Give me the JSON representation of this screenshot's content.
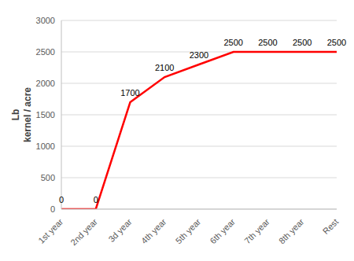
{
  "chart_data": {
    "type": "line",
    "y_label": "Lb\nkernel / acre",
    "categories": [
      "1st year",
      "2nd year",
      "3d year",
      "4th year",
      "5th year",
      "6th year",
      "7th year",
      "8th year",
      "Rest"
    ],
    "values": [
      0,
      0,
      1700,
      2100,
      2300,
      2500,
      2500,
      2500,
      2500
    ],
    "color": "#ff0000",
    "ylim": [
      0,
      3000
    ],
    "yticks": [
      0,
      500,
      1000,
      1500,
      2000,
      2500,
      3000
    ],
    "grid": true,
    "data_labels": true
  }
}
